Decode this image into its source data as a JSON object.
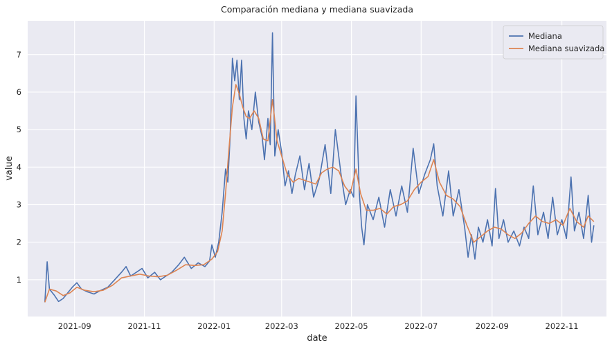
{
  "chart_data": {
    "type": "line",
    "title": "Comparación mediana y mediana suavizada",
    "xlabel": "date",
    "ylabel": "value",
    "x_ticks": [
      "2021-09",
      "2021-11",
      "2022-01",
      "2022-03",
      "2022-05",
      "2022-07",
      "2022-09",
      "2022-11"
    ],
    "y_ticks": [
      1,
      2,
      3,
      4,
      5,
      6,
      7
    ],
    "xlim": [
      "2021-07-22",
      "2022-12-10"
    ],
    "ylim": [
      0.02,
      7.9
    ],
    "grid": true,
    "legend_position": "top-right",
    "colors": {
      "Mediana": "#4c72b0",
      "Mediana suavizada": "#dd8452",
      "background": "#eaeaf2",
      "grid": "#ffffff"
    },
    "series": [
      {
        "name": "Mediana",
        "points": [
          [
            "2021-08-06",
            0.4
          ],
          [
            "2021-08-08",
            1.48
          ],
          [
            "2021-08-10",
            0.75
          ],
          [
            "2021-08-14",
            0.6
          ],
          [
            "2021-08-18",
            0.42
          ],
          [
            "2021-08-22",
            0.5
          ],
          [
            "2021-08-26",
            0.65
          ],
          [
            "2021-08-30",
            0.8
          ],
          [
            "2021-09-03",
            0.92
          ],
          [
            "2021-09-07",
            0.75
          ],
          [
            "2021-09-12",
            0.68
          ],
          [
            "2021-09-18",
            0.62
          ],
          [
            "2021-09-24",
            0.72
          ],
          [
            "2021-09-30",
            0.8
          ],
          [
            "2021-10-06",
            1.0
          ],
          [
            "2021-10-12",
            1.2
          ],
          [
            "2021-10-16",
            1.35
          ],
          [
            "2021-10-20",
            1.1
          ],
          [
            "2021-10-25",
            1.2
          ],
          [
            "2021-10-30",
            1.3
          ],
          [
            "2021-11-04",
            1.05
          ],
          [
            "2021-11-10",
            1.2
          ],
          [
            "2021-11-15",
            1.0
          ],
          [
            "2021-11-20",
            1.1
          ],
          [
            "2021-11-25",
            1.2
          ],
          [
            "2021-12-01",
            1.4
          ],
          [
            "2021-12-06",
            1.6
          ],
          [
            "2021-12-12",
            1.3
          ],
          [
            "2021-12-18",
            1.45
          ],
          [
            "2021-12-24",
            1.35
          ],
          [
            "2021-12-28",
            1.5
          ],
          [
            "2021-12-30",
            1.93
          ],
          [
            "2022-01-02",
            1.6
          ],
          [
            "2022-01-05",
            2.0
          ],
          [
            "2022-01-08",
            2.8
          ],
          [
            "2022-01-11",
            3.95
          ],
          [
            "2022-01-13",
            3.6
          ],
          [
            "2022-01-15",
            4.8
          ],
          [
            "2022-01-17",
            6.9
          ],
          [
            "2022-01-19",
            6.3
          ],
          [
            "2022-01-21",
            6.85
          ],
          [
            "2022-01-23",
            5.8
          ],
          [
            "2022-01-25",
            6.85
          ],
          [
            "2022-01-27",
            5.3
          ],
          [
            "2022-01-29",
            4.75
          ],
          [
            "2022-01-31",
            5.5
          ],
          [
            "2022-02-03",
            5.0
          ],
          [
            "2022-02-06",
            6.0
          ],
          [
            "2022-02-09",
            5.2
          ],
          [
            "2022-02-12",
            4.8
          ],
          [
            "2022-02-14",
            4.2
          ],
          [
            "2022-02-17",
            5.3
          ],
          [
            "2022-02-19",
            4.6
          ],
          [
            "2022-02-21",
            7.58
          ],
          [
            "2022-02-23",
            4.3
          ],
          [
            "2022-02-26",
            5.0
          ],
          [
            "2022-03-01",
            4.4
          ],
          [
            "2022-03-04",
            3.5
          ],
          [
            "2022-03-07",
            3.9
          ],
          [
            "2022-03-10",
            3.3
          ],
          [
            "2022-03-13",
            3.8
          ],
          [
            "2022-03-17",
            4.3
          ],
          [
            "2022-03-21",
            3.4
          ],
          [
            "2022-03-25",
            4.1
          ],
          [
            "2022-03-29",
            3.2
          ],
          [
            "2022-04-03",
            3.7
          ],
          [
            "2022-04-08",
            4.6
          ],
          [
            "2022-04-13",
            3.3
          ],
          [
            "2022-04-17",
            5.0
          ],
          [
            "2022-04-22",
            3.8
          ],
          [
            "2022-04-26",
            3.0
          ],
          [
            "2022-04-30",
            3.4
          ],
          [
            "2022-05-03",
            3.2
          ],
          [
            "2022-05-05",
            5.9
          ],
          [
            "2022-05-08",
            3.3
          ],
          [
            "2022-05-10",
            2.4
          ],
          [
            "2022-05-12",
            1.93
          ],
          [
            "2022-05-15",
            3.0
          ],
          [
            "2022-05-20",
            2.6
          ],
          [
            "2022-05-25",
            3.2
          ],
          [
            "2022-05-30",
            2.4
          ],
          [
            "2022-06-04",
            3.4
          ],
          [
            "2022-06-09",
            2.7
          ],
          [
            "2022-06-14",
            3.5
          ],
          [
            "2022-06-19",
            2.8
          ],
          [
            "2022-06-24",
            4.5
          ],
          [
            "2022-06-29",
            3.3
          ],
          [
            "2022-07-04",
            3.8
          ],
          [
            "2022-07-09",
            4.2
          ],
          [
            "2022-07-12",
            4.62
          ],
          [
            "2022-07-15",
            3.5
          ],
          [
            "2022-07-20",
            2.7
          ],
          [
            "2022-07-25",
            3.9
          ],
          [
            "2022-07-29",
            2.7
          ],
          [
            "2022-08-03",
            3.4
          ],
          [
            "2022-08-08",
            2.4
          ],
          [
            "2022-08-11",
            1.6
          ],
          [
            "2022-08-14",
            2.2
          ],
          [
            "2022-08-17",
            1.55
          ],
          [
            "2022-08-20",
            2.4
          ],
          [
            "2022-08-24",
            2.0
          ],
          [
            "2022-08-28",
            2.6
          ],
          [
            "2022-09-01",
            1.9
          ],
          [
            "2022-09-04",
            3.43
          ],
          [
            "2022-09-07",
            2.1
          ],
          [
            "2022-09-11",
            2.6
          ],
          [
            "2022-09-15",
            2.0
          ],
          [
            "2022-09-20",
            2.3
          ],
          [
            "2022-09-25",
            1.9
          ],
          [
            "2022-09-29",
            2.4
          ],
          [
            "2022-10-03",
            2.1
          ],
          [
            "2022-10-07",
            3.5
          ],
          [
            "2022-10-11",
            2.2
          ],
          [
            "2022-10-16",
            2.8
          ],
          [
            "2022-10-20",
            2.1
          ],
          [
            "2022-10-24",
            3.2
          ],
          [
            "2022-10-28",
            2.2
          ],
          [
            "2022-11-01",
            2.6
          ],
          [
            "2022-11-05",
            2.1
          ],
          [
            "2022-11-09",
            3.74
          ],
          [
            "2022-11-12",
            2.3
          ],
          [
            "2022-11-16",
            2.8
          ],
          [
            "2022-11-20",
            2.1
          ],
          [
            "2022-11-24",
            3.25
          ],
          [
            "2022-11-27",
            2.0
          ],
          [
            "2022-11-29",
            2.45
          ]
        ]
      },
      {
        "name": "Mediana suavizada",
        "points": [
          [
            "2021-08-06",
            0.4
          ],
          [
            "2021-08-10",
            0.75
          ],
          [
            "2021-08-16",
            0.7
          ],
          [
            "2021-08-22",
            0.58
          ],
          [
            "2021-08-28",
            0.65
          ],
          [
            "2021-09-03",
            0.8
          ],
          [
            "2021-09-10",
            0.72
          ],
          [
            "2021-09-18",
            0.68
          ],
          [
            "2021-09-26",
            0.72
          ],
          [
            "2021-10-04",
            0.85
          ],
          [
            "2021-10-12",
            1.05
          ],
          [
            "2021-10-20",
            1.1
          ],
          [
            "2021-10-28",
            1.15
          ],
          [
            "2021-11-05",
            1.1
          ],
          [
            "2021-11-13",
            1.08
          ],
          [
            "2021-11-21",
            1.12
          ],
          [
            "2021-11-29",
            1.25
          ],
          [
            "2021-12-07",
            1.4
          ],
          [
            "2021-12-15",
            1.38
          ],
          [
            "2021-12-23",
            1.4
          ],
          [
            "2021-12-30",
            1.55
          ],
          [
            "2022-01-04",
            1.75
          ],
          [
            "2022-01-08",
            2.3
          ],
          [
            "2022-01-11",
            3.3
          ],
          [
            "2022-01-14",
            4.5
          ],
          [
            "2022-01-17",
            5.6
          ],
          [
            "2022-01-20",
            6.2
          ],
          [
            "2022-01-23",
            5.95
          ],
          [
            "2022-01-26",
            5.6
          ],
          [
            "2022-01-29",
            5.35
          ],
          [
            "2022-02-01",
            5.3
          ],
          [
            "2022-02-05",
            5.5
          ],
          [
            "2022-02-09",
            5.3
          ],
          [
            "2022-02-13",
            4.75
          ],
          [
            "2022-02-17",
            4.7
          ],
          [
            "2022-02-21",
            5.8
          ],
          [
            "2022-02-25",
            4.7
          ],
          [
            "2022-03-01",
            4.3
          ],
          [
            "2022-03-06",
            3.8
          ],
          [
            "2022-03-11",
            3.6
          ],
          [
            "2022-03-16",
            3.7
          ],
          [
            "2022-03-21",
            3.65
          ],
          [
            "2022-03-26",
            3.6
          ],
          [
            "2022-03-31",
            3.55
          ],
          [
            "2022-04-05",
            3.85
          ],
          [
            "2022-04-10",
            3.95
          ],
          [
            "2022-04-15",
            4.0
          ],
          [
            "2022-04-20",
            3.9
          ],
          [
            "2022-04-25",
            3.5
          ],
          [
            "2022-04-30",
            3.3
          ],
          [
            "2022-05-05",
            3.95
          ],
          [
            "2022-05-09",
            3.3
          ],
          [
            "2022-05-14",
            2.85
          ],
          [
            "2022-05-20",
            2.85
          ],
          [
            "2022-05-26",
            2.9
          ],
          [
            "2022-06-01",
            2.75
          ],
          [
            "2022-06-07",
            2.95
          ],
          [
            "2022-06-13",
            3.0
          ],
          [
            "2022-06-19",
            3.1
          ],
          [
            "2022-06-25",
            3.4
          ],
          [
            "2022-07-01",
            3.6
          ],
          [
            "2022-07-07",
            3.75
          ],
          [
            "2022-07-12",
            4.2
          ],
          [
            "2022-07-17",
            3.6
          ],
          [
            "2022-07-23",
            3.25
          ],
          [
            "2022-07-29",
            3.15
          ],
          [
            "2022-08-04",
            2.95
          ],
          [
            "2022-08-10",
            2.45
          ],
          [
            "2022-08-16",
            2.0
          ],
          [
            "2022-08-22",
            2.15
          ],
          [
            "2022-08-28",
            2.3
          ],
          [
            "2022-09-03",
            2.4
          ],
          [
            "2022-09-09",
            2.35
          ],
          [
            "2022-09-15",
            2.2
          ],
          [
            "2022-09-21",
            2.1
          ],
          [
            "2022-09-27",
            2.25
          ],
          [
            "2022-10-03",
            2.5
          ],
          [
            "2022-10-09",
            2.7
          ],
          [
            "2022-10-15",
            2.55
          ],
          [
            "2022-10-21",
            2.5
          ],
          [
            "2022-10-27",
            2.6
          ],
          [
            "2022-11-02",
            2.45
          ],
          [
            "2022-11-08",
            2.9
          ],
          [
            "2022-11-14",
            2.55
          ],
          [
            "2022-11-20",
            2.4
          ],
          [
            "2022-11-24",
            2.7
          ],
          [
            "2022-11-29",
            2.55
          ]
        ]
      }
    ]
  }
}
